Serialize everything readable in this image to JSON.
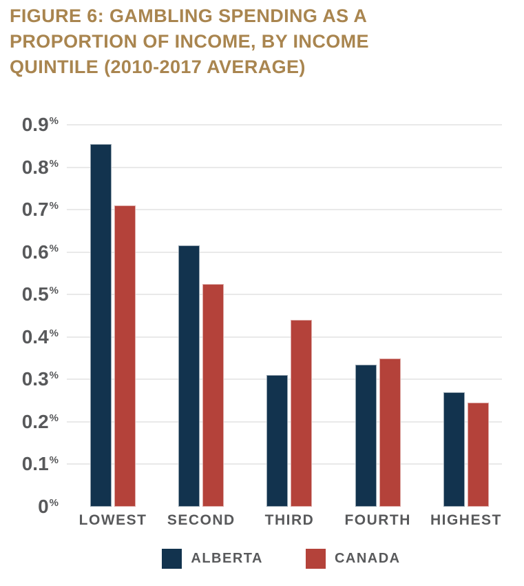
{
  "title": {
    "text": "FIGURE 6: GAMBLING SPENDING AS A\nPROPORTION OF INCOME, BY INCOME\nQUINTILE (2010-2017 AVERAGE)",
    "color": "#A9854F"
  },
  "colors": {
    "background": "#FFFFFF",
    "title_gold": "#A9854F",
    "axis_text": "#58595B",
    "gridline": "#E9E9E9",
    "alberta_navy": "#12334E",
    "canada_red": "#B4423A"
  },
  "chart_data": {
    "type": "bar",
    "title": "FIGURE 6: GAMBLING SPENDING AS A PROPORTION OF INCOME, BY INCOME QUINTILE (2010-2017 AVERAGE)",
    "categories": [
      "LOWEST",
      "SECOND",
      "THIRD",
      "FOURTH",
      "HIGHEST"
    ],
    "series": [
      {
        "name": "ALBERTA",
        "color": "#12334E",
        "values": [
          0.855,
          0.615,
          0.31,
          0.335,
          0.27
        ]
      },
      {
        "name": "CANADA",
        "color": "#B4423A",
        "values": [
          0.71,
          0.525,
          0.44,
          0.35,
          0.245
        ]
      }
    ],
    "unit": "%",
    "xlabel": "",
    "ylabel": "",
    "ylim": [
      0,
      0.9
    ],
    "ytick_values": [
      0,
      0.1,
      0.2,
      0.3,
      0.4,
      0.5,
      0.6,
      0.7,
      0.8,
      0.9
    ],
    "ytick_labels": [
      "0%",
      "0.1%",
      "0.2%",
      "0.3%",
      "0.4%",
      "0.5%",
      "0.6%",
      "0.7%",
      "0.8%",
      "0.9%"
    ],
    "grid": true,
    "gridline_values": [
      0.1,
      0.2,
      0.3,
      0.4,
      0.5,
      0.6,
      0.7,
      0.8,
      0.9
    ],
    "legend_position": "bottom"
  }
}
